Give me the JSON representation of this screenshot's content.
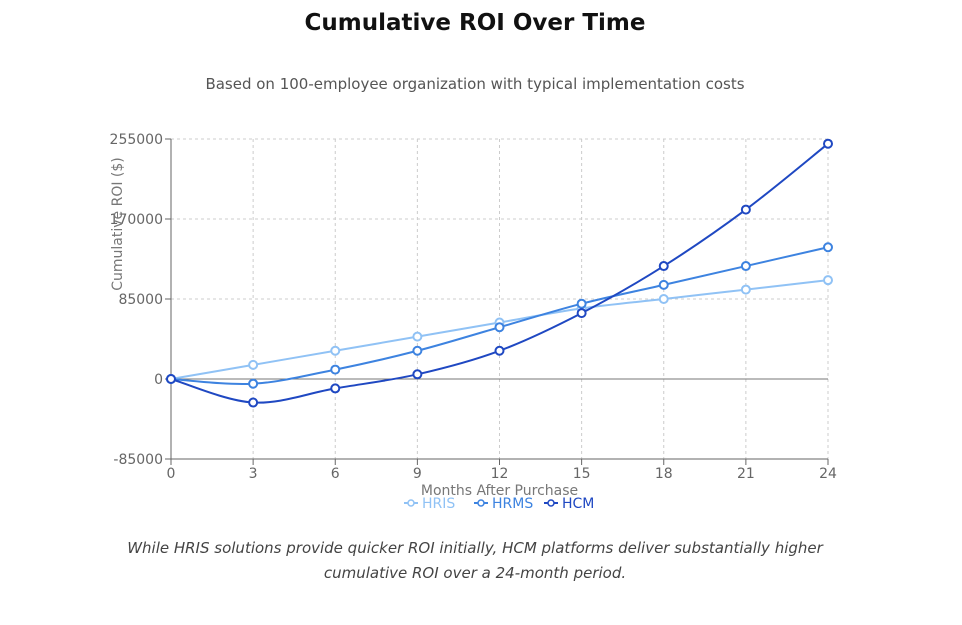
{
  "title": "Cumulative ROI Over Time",
  "subtitle": "Based on 100-employee organization with typical implementation costs",
  "caption": "While HRIS solutions provide quicker ROI initially, HCM platforms deliver substantially higher cumulative ROI over a 24-month period.",
  "chart_data": {
    "type": "line",
    "xlabel": "Months After Purchase",
    "ylabel": "Cumulative ROI ($)",
    "x": [
      0,
      3,
      6,
      9,
      12,
      15,
      18,
      21,
      24
    ],
    "xticks": [
      "0",
      "3",
      "6",
      "9",
      "12",
      "15",
      "18",
      "21",
      "24"
    ],
    "yticks": [
      "-85000",
      "0",
      "85000",
      "170000",
      "255000"
    ],
    "ylim": [
      -85000,
      255000
    ],
    "grid": true,
    "legend_position": "bottom",
    "series": [
      {
        "name": "HRIS",
        "color": "#90c2f5",
        "values": [
          0,
          15000,
          30000,
          45000,
          60000,
          75000,
          85000,
          95000,
          105000
        ]
      },
      {
        "name": "HRMS",
        "color": "#3d83e0",
        "values": [
          0,
          -5000,
          10000,
          30000,
          55000,
          80000,
          100000,
          120000,
          140000
        ]
      },
      {
        "name": "HCM",
        "color": "#1f48c2",
        "values": [
          0,
          -25000,
          -10000,
          5000,
          30000,
          70000,
          120000,
          180000,
          250000
        ]
      }
    ]
  }
}
